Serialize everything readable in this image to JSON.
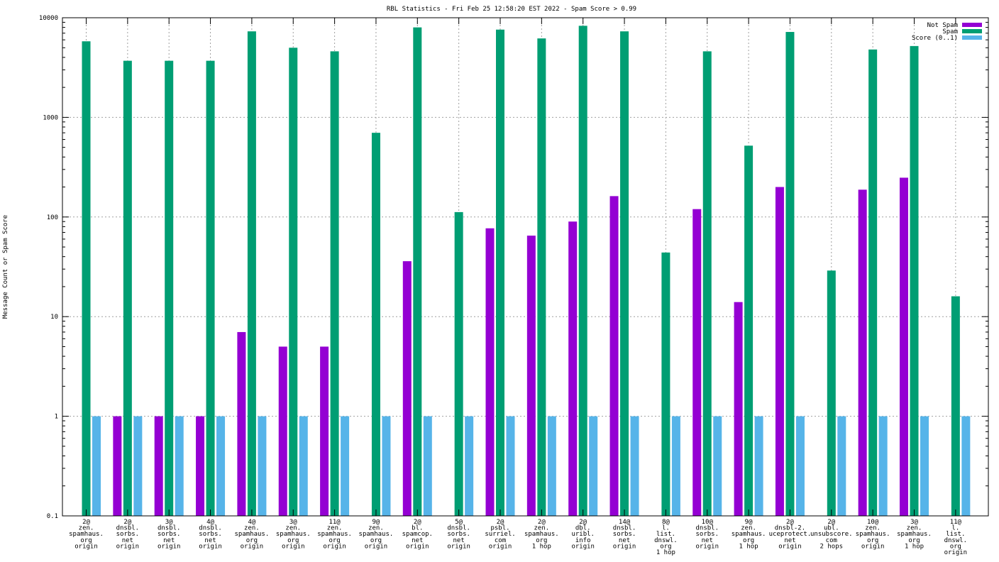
{
  "chart_data": {
    "type": "bar",
    "title": "RBL Statistics - Fri Feb 25 12:58:20 EST 2022 - Spam Score > 0.99",
    "ylabel": "Message Count or Spam Score",
    "xlabel": "",
    "yscale": "log",
    "ylim": [
      0.1,
      10000
    ],
    "yticks": [
      "0.1",
      "1",
      "10",
      "100",
      "1000",
      "10000"
    ],
    "grid": true,
    "legend_position": "top-right",
    "categories": [
      [
        "2@",
        "zen.",
        "spamhaus.",
        "org",
        "origin"
      ],
      [
        "2@",
        "dnsbl.",
        "sorbs.",
        "net",
        "origin"
      ],
      [
        "3@",
        "dnsbl.",
        "sorbs.",
        "net",
        "origin"
      ],
      [
        "4@",
        "dnsbl.",
        "sorbs.",
        "net",
        "origin"
      ],
      [
        "4@",
        "zen.",
        "spamhaus.",
        "org",
        "origin"
      ],
      [
        "3@",
        "zen.",
        "spamhaus.",
        "org",
        "origin"
      ],
      [
        "11@",
        "zen.",
        "spamhaus.",
        "org",
        "origin"
      ],
      [
        "9@",
        "zen.",
        "spamhaus.",
        "org",
        "origin"
      ],
      [
        "2@",
        "bl.",
        "spamcop.",
        "net",
        "origin"
      ],
      [
        "5@",
        "dnsbl.",
        "sorbs.",
        "net",
        "origin"
      ],
      [
        "2@",
        "psbl.",
        "surriel.",
        "com",
        "origin"
      ],
      [
        "2@",
        "zen.",
        "spamhaus.",
        "org",
        "1 hop"
      ],
      [
        "2@",
        "dbl.",
        "uribl.",
        "info",
        "origin"
      ],
      [
        "14@",
        "dnsbl.",
        "sorbs.",
        "net",
        "origin"
      ],
      [
        "8@",
        "l.",
        "list.",
        "dnswl.",
        "org",
        "1 hop"
      ],
      [
        "10@",
        "dnsbl.",
        "sorbs.",
        "net",
        "origin"
      ],
      [
        "9@",
        "zen.",
        "spamhaus.",
        "org",
        "1 hop"
      ],
      [
        "2@",
        "dnsbl-2.",
        "uceprotect.",
        "net",
        "origin"
      ],
      [
        "2@",
        "ubl.",
        "unsubscore.",
        "com",
        "2 hops"
      ],
      [
        "10@",
        "zen.",
        "spamhaus.",
        "org",
        "origin"
      ],
      [
        "3@",
        "zen.",
        "spamhaus.",
        "org",
        "1 hop"
      ],
      [
        "11@",
        "l.",
        "list.",
        "dnswl.",
        "org",
        "origin"
      ]
    ],
    "series": [
      {
        "name": "Not Spam",
        "color": "#9400d3",
        "values": [
          null,
          1,
          1,
          1,
          7,
          5,
          5,
          null,
          36,
          null,
          77,
          65,
          90,
          162,
          null,
          120,
          14,
          200,
          null,
          188,
          248,
          null
        ]
      },
      {
        "name": "Spam",
        "color": "#009e73",
        "values": [
          5800,
          3700,
          3700,
          3700,
          7300,
          5000,
          4600,
          700,
          8000,
          112,
          7600,
          6200,
          8300,
          7300,
          44,
          4600,
          520,
          7200,
          29,
          4800,
          5200,
          16
        ]
      },
      {
        "name": "Score (0..1)",
        "color": "#56b4e9",
        "values": [
          1,
          1,
          1,
          1,
          1,
          1,
          1,
          1,
          1,
          1,
          1,
          1,
          1,
          1,
          1,
          1,
          1,
          1,
          1,
          1,
          1,
          1
        ]
      }
    ]
  }
}
